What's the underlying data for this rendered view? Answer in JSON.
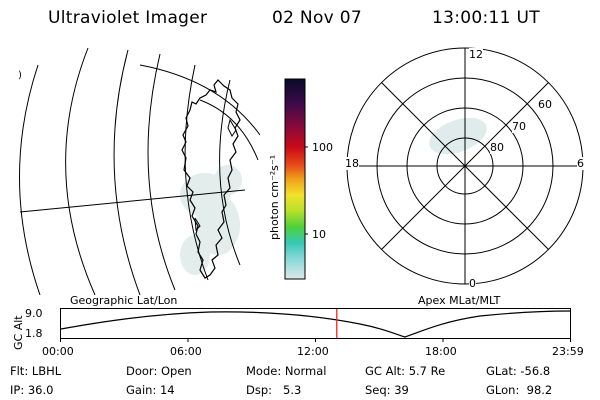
{
  "header": {
    "instrument": "Ultraviolet Imager",
    "date": "02 Nov 07",
    "time": "13:00:11 UT"
  },
  "geo_panel": {
    "label": "Geographic Lat/Lon",
    "edge_mark": ")"
  },
  "colorbar": {
    "unit_label": "photon cm⁻²s⁻¹",
    "ticks": [
      "100",
      "10"
    ],
    "colors": [
      "#0a0a2a",
      "#3a0a4a",
      "#8a0a3a",
      "#c80a1a",
      "#e84a1a",
      "#f0a01a",
      "#f2e22a",
      "#b8e02a",
      "#4ed03a",
      "#36c8b8",
      "#8ad8d8",
      "#dde8e8"
    ]
  },
  "polar_panel": {
    "label": "Apex MLat/MLT",
    "mlt_labels": {
      "top": "12",
      "left": "18",
      "right": "6",
      "bottom": "0"
    },
    "lat_labels": [
      "60",
      "70",
      "80"
    ]
  },
  "altitude_plot": {
    "ylabel": "GC Alt",
    "y_ticks": [
      "9.0",
      "1.8"
    ],
    "x_ticks": [
      "00:00",
      "06:00",
      "12:00",
      "18:00",
      "23:59"
    ],
    "current_time_fraction": 0.5417,
    "marker_color": "#ff2020"
  },
  "info": {
    "flt_label": "Flt:",
    "flt_value": "LBHL",
    "ip_label": "IP:",
    "ip_value": "36.0",
    "door_label": "Door:",
    "door_value": "Open",
    "gain_label": "Gain:",
    "gain_value": "14",
    "mode_label": "Mode:",
    "mode_value": "Normal",
    "dsp_label": "Dsp:",
    "dsp_value": "5.3",
    "gcalt_label": "GC Alt:",
    "gcalt_value": "5.7 Re",
    "seq_label": "Seq:",
    "seq_value": "39",
    "glat_label": "GLat:",
    "glat_value": "-56.8",
    "glon_label": "GLon:",
    "glon_value": "98.2"
  }
}
